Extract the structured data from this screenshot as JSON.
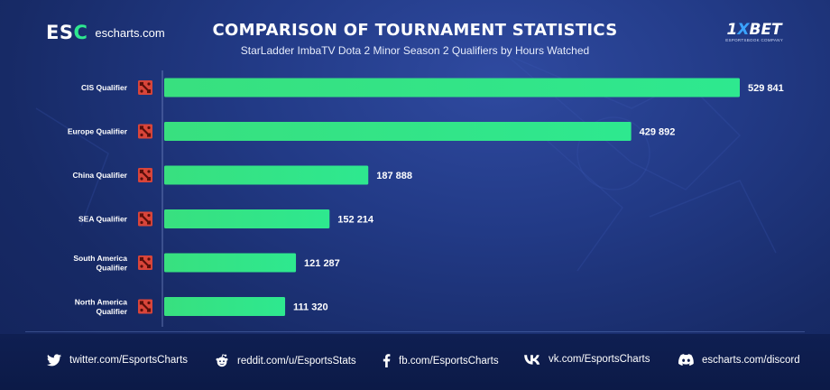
{
  "brand": {
    "logo_text": "ESC",
    "site": "escharts.com"
  },
  "partner": {
    "logo_text": "1XBET",
    "tagline": "ESPORTSBOOK COMPANY"
  },
  "chart_data": {
    "type": "bar",
    "orientation": "horizontal",
    "title": "COMPARISON OF TOURNAMENT STATISTICS",
    "subtitle": "StarLadder ImbaTV Dota 2 Minor Season 2 Qualifiers by Hours Watched",
    "categories": [
      [
        "CIS Qualifier"
      ],
      [
        "Europe Qualifier"
      ],
      [
        "China Qualifier"
      ],
      [
        "SEA Qualifier"
      ],
      [
        "South America",
        "Qualifier"
      ],
      [
        "North America",
        "Qualifier"
      ]
    ],
    "values": [
      529841,
      429892,
      187888,
      152214,
      121287,
      111320
    ],
    "value_labels": [
      "529 841",
      "429 892",
      "187 888",
      "152 214",
      "121 287",
      "111 320"
    ],
    "xlim": [
      0,
      529841
    ],
    "grid": false,
    "bar_color": "#2ee88f",
    "icon": "dota2-icon"
  },
  "footer": {
    "links": [
      {
        "icon": "twitter-icon",
        "text": "twitter.com/EsportsCharts"
      },
      {
        "icon": "reddit-icon",
        "text": "reddit.com/u/EsportsStats"
      },
      {
        "icon": "facebook-icon",
        "text": "fb.com/EsportsCharts"
      },
      {
        "icon": "vk-icon",
        "text": "vk.com/EsportsCharts"
      },
      {
        "icon": "discord-icon",
        "text": "escharts.com/discord"
      }
    ]
  }
}
